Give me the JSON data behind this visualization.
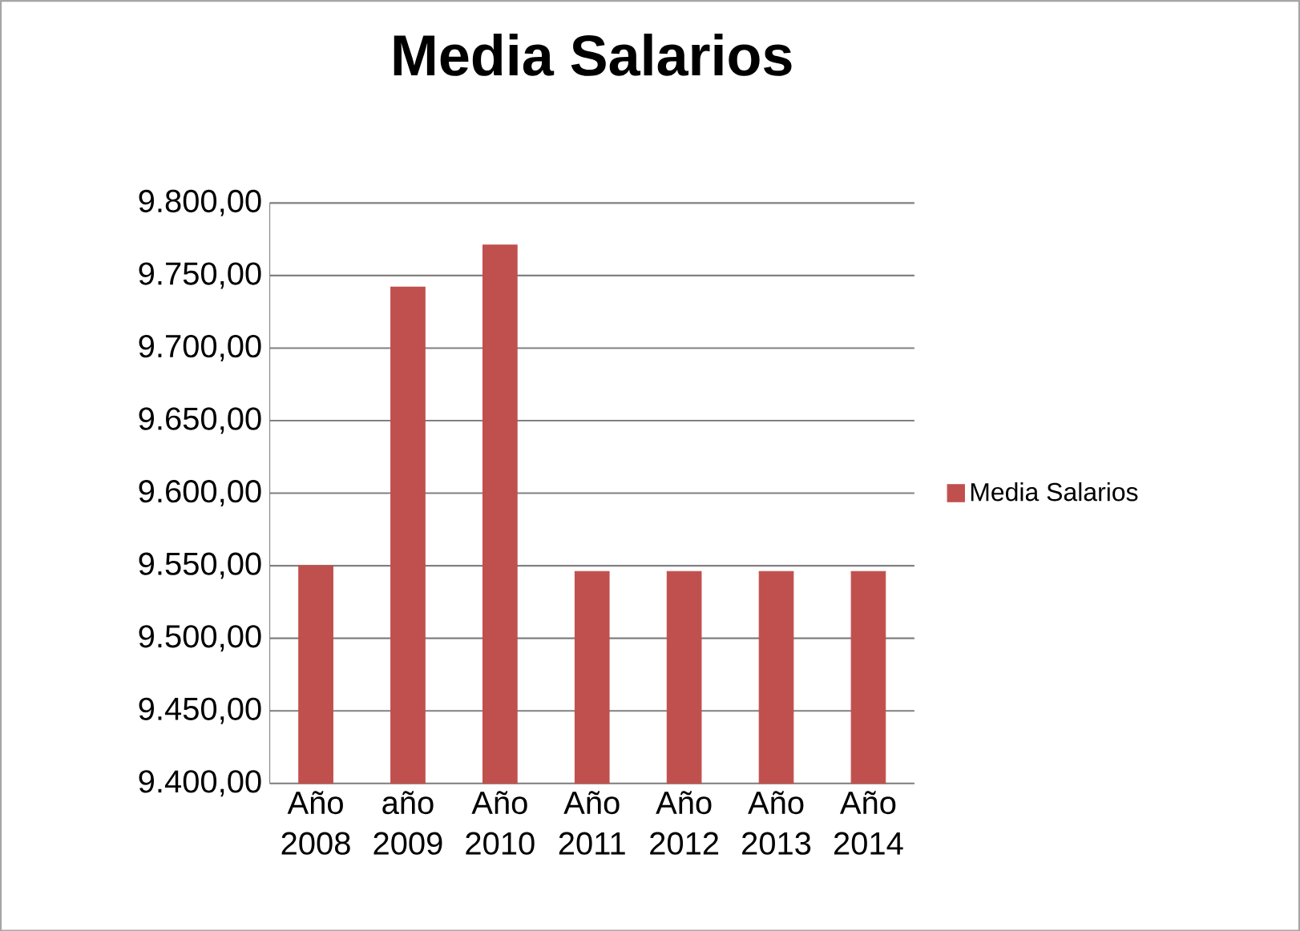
{
  "chart_data": {
    "type": "bar",
    "title": "Media Salarios",
    "categories": [
      "Año 2008",
      "año 2009",
      "Año 2010",
      "Año 2011",
      "Año 2012",
      "Año 2013",
      "Año 2014"
    ],
    "series": [
      {
        "name": "Media Salarios",
        "color": "#c0504d",
        "values": [
          9550,
          9742,
          9771,
          9546,
          9546,
          9546,
          9546
        ]
      }
    ],
    "ylim": [
      9400,
      9800
    ],
    "yticks": [
      {
        "value": 9400,
        "label": "9.400,00"
      },
      {
        "value": 9450,
        "label": "9.450,00"
      },
      {
        "value": 9500,
        "label": "9.500,00"
      },
      {
        "value": 9550,
        "label": "9.550,00"
      },
      {
        "value": 9600,
        "label": "9.600,00"
      },
      {
        "value": 9650,
        "label": "9.650,00"
      },
      {
        "value": 9700,
        "label": "9.700,00"
      },
      {
        "value": 9750,
        "label": "9.750,00"
      },
      {
        "value": 9800,
        "label": "9.800,00"
      }
    ],
    "grid": "y",
    "legend": "right"
  }
}
